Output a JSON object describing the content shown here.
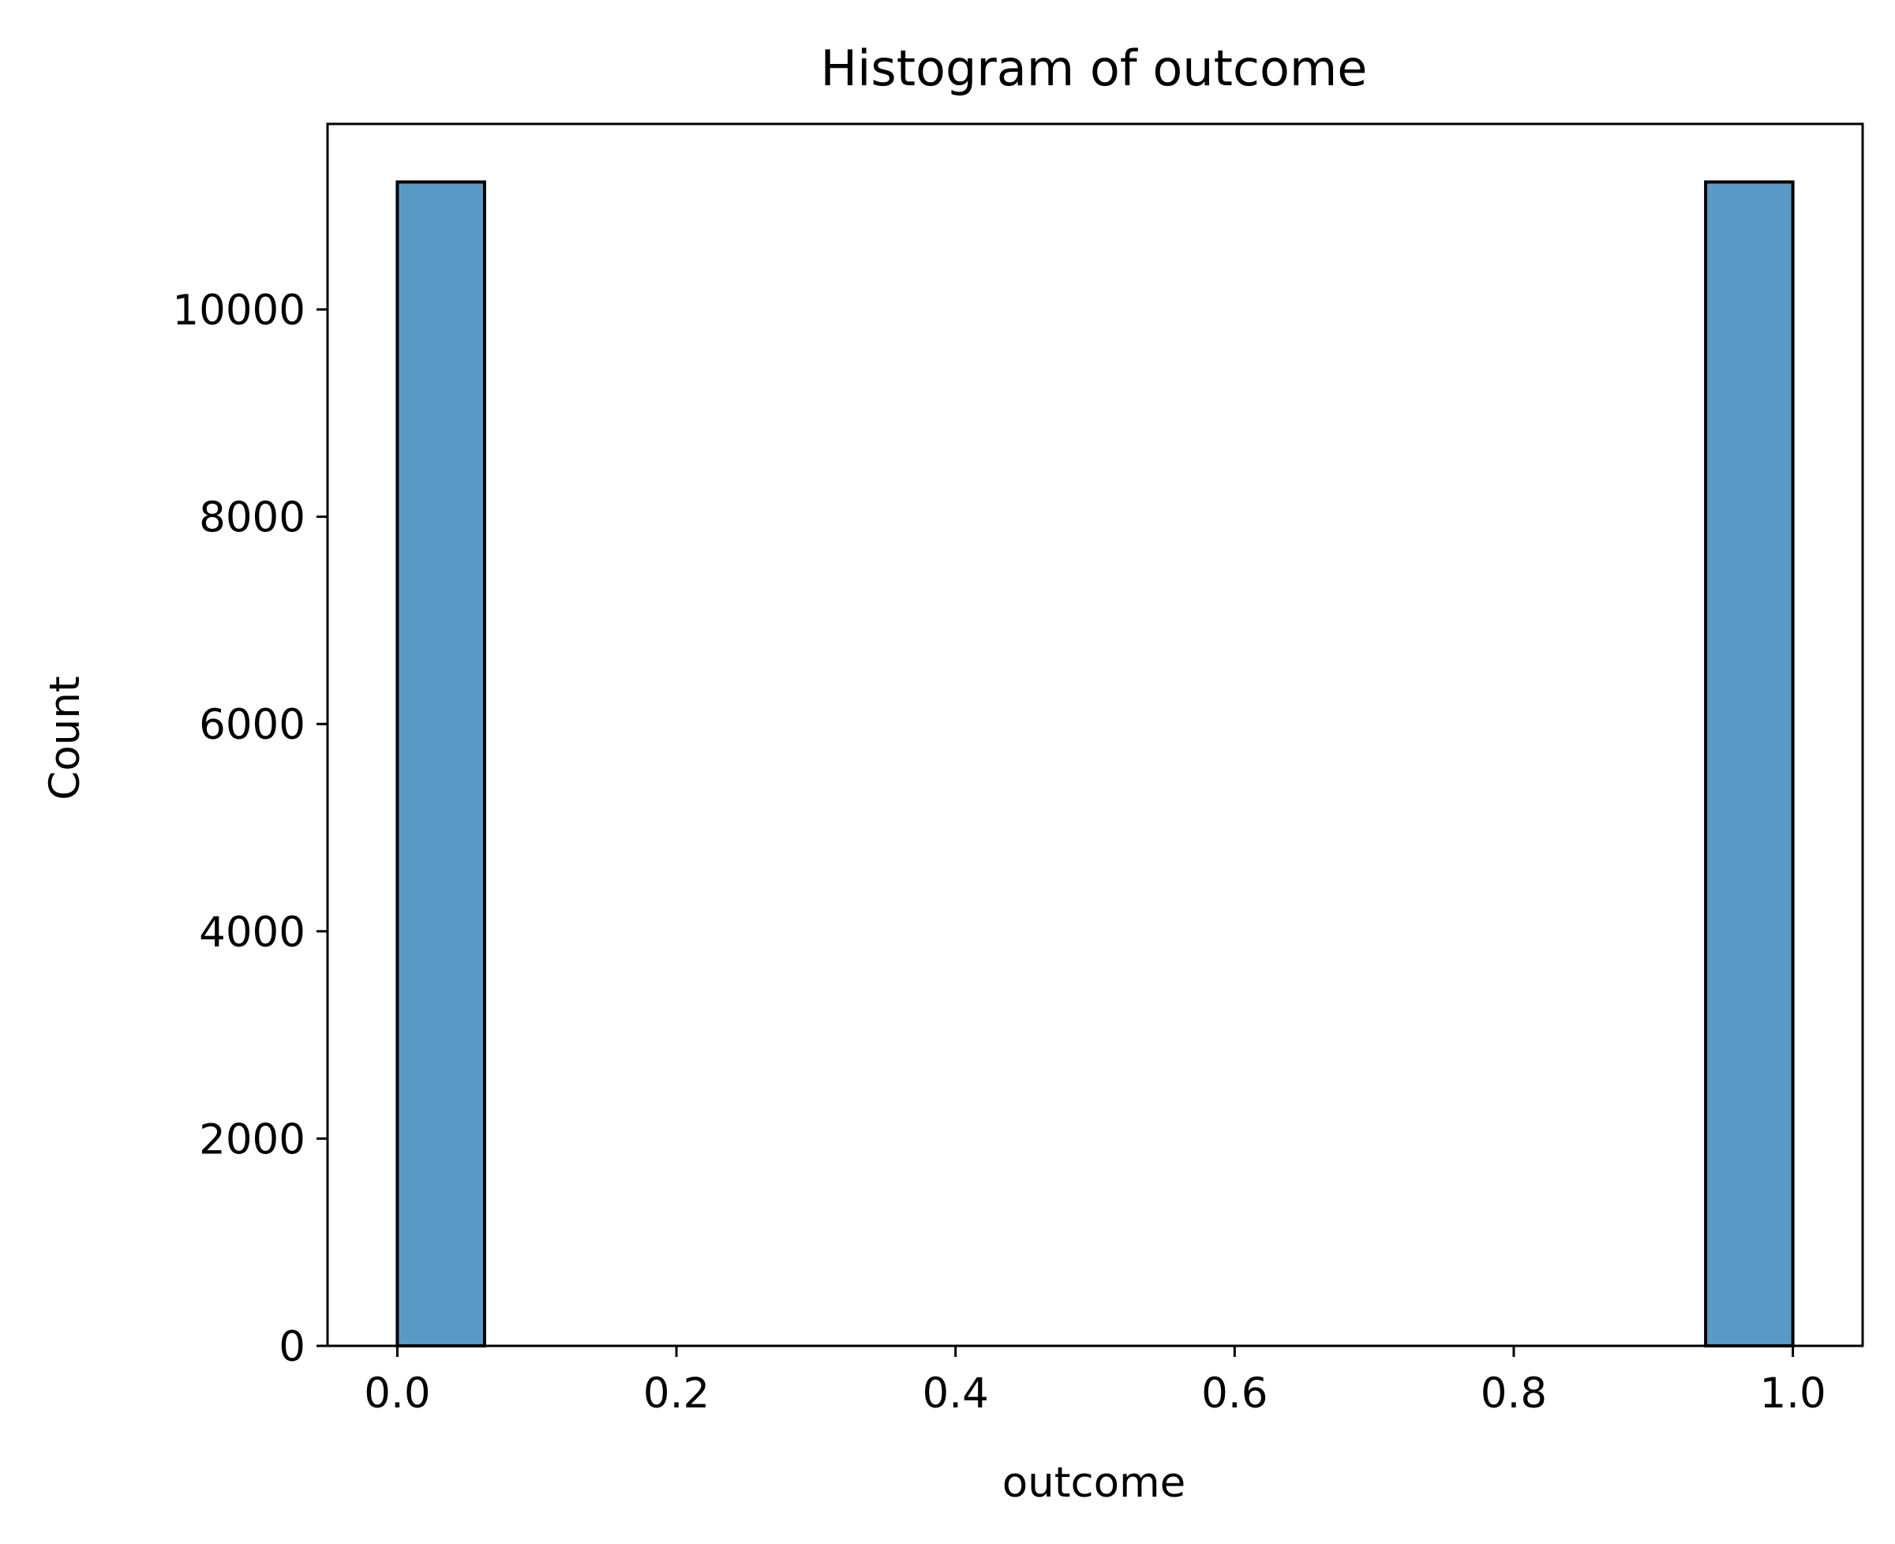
{
  "chart_data": {
    "type": "bar",
    "title": "Histogram of outcome",
    "xlabel": "outcome",
    "ylabel": "Count",
    "bins": [
      {
        "x0": 0.0,
        "x1": 0.0625,
        "count": 11230
      },
      {
        "x0": 0.9375,
        "x1": 1.0,
        "count": 11230
      }
    ],
    "xlim": [
      -0.05,
      1.05
    ],
    "ylim": [
      0,
      11790
    ],
    "x_ticks": [
      {
        "value": 0.0,
        "label": "0.0"
      },
      {
        "value": 0.2,
        "label": "0.2"
      },
      {
        "value": 0.4,
        "label": "0.4"
      },
      {
        "value": 0.6,
        "label": "0.6"
      },
      {
        "value": 0.8,
        "label": "0.8"
      },
      {
        "value": 1.0,
        "label": "1.0"
      }
    ],
    "y_ticks": [
      {
        "value": 0,
        "label": "0"
      },
      {
        "value": 2000,
        "label": "2000"
      },
      {
        "value": 4000,
        "label": "4000"
      },
      {
        "value": 6000,
        "label": "6000"
      },
      {
        "value": 8000,
        "label": "8000"
      },
      {
        "value": 10000,
        "label": "10000"
      }
    ],
    "grid": false,
    "colors": {
      "bar_fill": "#5899c6",
      "bar_edge": "#000000",
      "axes": "#000000"
    }
  }
}
